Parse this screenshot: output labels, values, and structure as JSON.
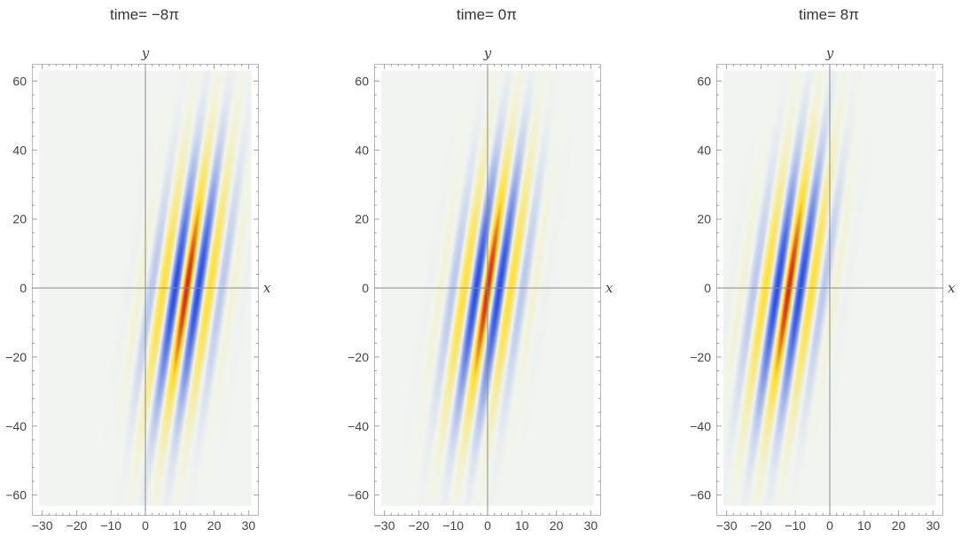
{
  "chart_data": [
    {
      "type": "heatmap",
      "title": "time= −8π",
      "time_pi_multiple": -8,
      "xlabel": "x",
      "ylabel": "y",
      "xlim": [
        -33,
        33
      ],
      "ylim": [
        -66,
        65
      ],
      "plot_region_x": [
        -31,
        31
      ],
      "plot_region_y": [
        -63,
        63
      ],
      "xticks": [
        -30,
        -20,
        -10,
        0,
        10,
        20,
        30
      ],
      "xtick_labels": [
        "−30",
        "−20",
        "−10",
        "0",
        "10",
        "20",
        "30"
      ],
      "yticks": [
        60,
        40,
        20,
        0,
        -20,
        -40,
        -60
      ],
      "ytick_labels": [
        "60",
        "40",
        "20",
        "0",
        "−20",
        "−40",
        "−60"
      ],
      "packet": {
        "center_x": 12,
        "center_y": 0,
        "tilt_dx_per_dy": 0.15,
        "wavelength_x": 7,
        "width_x": 6,
        "width_y": 24
      },
      "colormap": {
        "positive": "#d42a1a",
        "positive_mid": "#ffe030",
        "zero": "#f1f5f0",
        "negative": "#1e46e0"
      }
    },
    {
      "type": "heatmap",
      "title": "time= 0π",
      "time_pi_multiple": 0,
      "xlabel": "x",
      "ylabel": "y",
      "xlim": [
        -33,
        33
      ],
      "ylim": [
        -66,
        65
      ],
      "plot_region_x": [
        -31,
        31
      ],
      "plot_region_y": [
        -63,
        63
      ],
      "xticks": [
        -30,
        -20,
        -10,
        0,
        10,
        20,
        30
      ],
      "xtick_labels": [
        "−30",
        "−20",
        "−10",
        "0",
        "10",
        "20",
        "30"
      ],
      "yticks": [
        60,
        40,
        20,
        0,
        -20,
        -40,
        -60
      ],
      "ytick_labels": [
        "60",
        "40",
        "20",
        "0",
        "−20",
        "−40",
        "−60"
      ],
      "packet": {
        "center_x": 0,
        "center_y": 0,
        "tilt_dx_per_dy": 0.15,
        "wavelength_x": 7,
        "width_x": 6,
        "width_y": 24
      },
      "colormap": {
        "positive": "#d42a1a",
        "positive_mid": "#ffe030",
        "zero": "#f1f5f0",
        "negative": "#1e46e0"
      }
    },
    {
      "type": "heatmap",
      "title": "time= 8π",
      "time_pi_multiple": 8,
      "xlabel": "x",
      "ylabel": "y",
      "xlim": [
        -33,
        33
      ],
      "ylim": [
        -66,
        65
      ],
      "plot_region_x": [
        -31,
        31
      ],
      "plot_region_y": [
        -63,
        63
      ],
      "xticks": [
        -30,
        -20,
        -10,
        0,
        10,
        20,
        30
      ],
      "xtick_labels": [
        "−30",
        "−20",
        "−10",
        "0",
        "10",
        "20",
        "30"
      ],
      "yticks": [
        60,
        40,
        20,
        0,
        -20,
        -40,
        -60
      ],
      "ytick_labels": [
        "60",
        "40",
        "20",
        "0",
        "−20",
        "−40",
        "−60"
      ],
      "packet": {
        "center_x": -12,
        "center_y": 0,
        "tilt_dx_per_dy": 0.15,
        "wavelength_x": 7,
        "width_x": 6,
        "width_y": 24
      },
      "colormap": {
        "positive": "#d42a1a",
        "positive_mid": "#ffe030",
        "zero": "#f1f5f0",
        "negative": "#1e46e0"
      }
    }
  ]
}
